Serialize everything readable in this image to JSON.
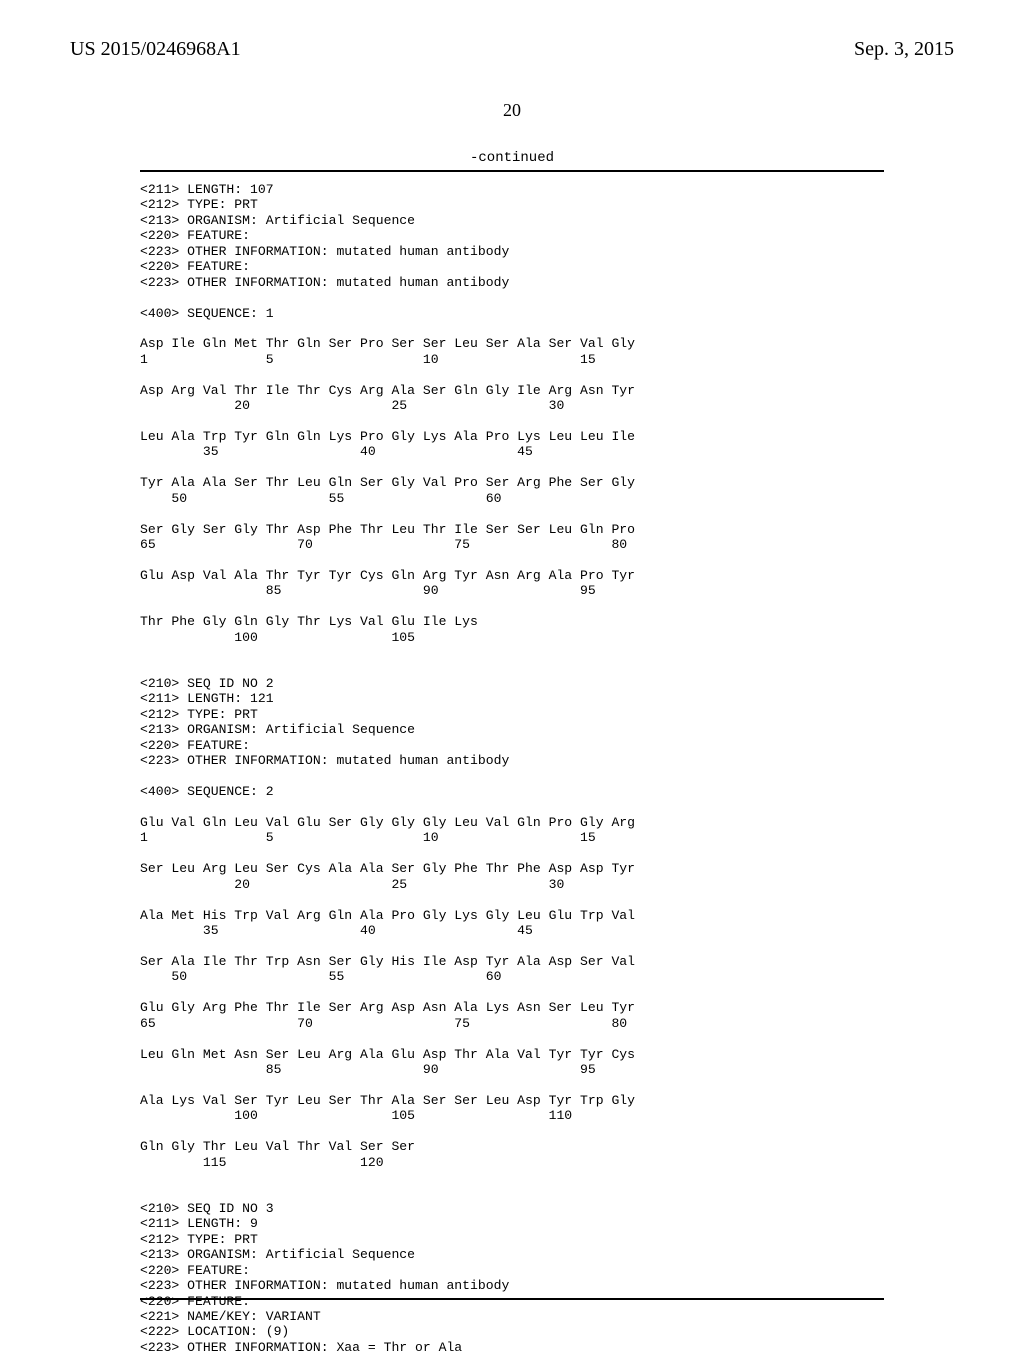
{
  "header": {
    "pub_number": "US 2015/0246968A1",
    "pub_date": "Sep. 3, 2015",
    "page_number": "20",
    "continued_label": "-continued"
  },
  "listing": "<211> LENGTH: 107\n<212> TYPE: PRT\n<213> ORGANISM: Artificial Sequence\n<220> FEATURE:\n<223> OTHER INFORMATION: mutated human antibody\n<220> FEATURE:\n<223> OTHER INFORMATION: mutated human antibody\n\n<400> SEQUENCE: 1\n\nAsp Ile Gln Met Thr Gln Ser Pro Ser Ser Leu Ser Ala Ser Val Gly\n1               5                   10                  15\n\nAsp Arg Val Thr Ile Thr Cys Arg Ala Ser Gln Gly Ile Arg Asn Tyr\n            20                  25                  30\n\nLeu Ala Trp Tyr Gln Gln Lys Pro Gly Lys Ala Pro Lys Leu Leu Ile\n        35                  40                  45\n\nTyr Ala Ala Ser Thr Leu Gln Ser Gly Val Pro Ser Arg Phe Ser Gly\n    50                  55                  60\n\nSer Gly Ser Gly Thr Asp Phe Thr Leu Thr Ile Ser Ser Leu Gln Pro\n65                  70                  75                  80\n\nGlu Asp Val Ala Thr Tyr Tyr Cys Gln Arg Tyr Asn Arg Ala Pro Tyr\n                85                  90                  95\n\nThr Phe Gly Gln Gly Thr Lys Val Glu Ile Lys\n            100                 105\n\n\n<210> SEQ ID NO 2\n<211> LENGTH: 121\n<212> TYPE: PRT\n<213> ORGANISM: Artificial Sequence\n<220> FEATURE:\n<223> OTHER INFORMATION: mutated human antibody\n\n<400> SEQUENCE: 2\n\nGlu Val Gln Leu Val Glu Ser Gly Gly Gly Leu Val Gln Pro Gly Arg\n1               5                   10                  15\n\nSer Leu Arg Leu Ser Cys Ala Ala Ser Gly Phe Thr Phe Asp Asp Tyr\n            20                  25                  30\n\nAla Met His Trp Val Arg Gln Ala Pro Gly Lys Gly Leu Glu Trp Val\n        35                  40                  45\n\nSer Ala Ile Thr Trp Asn Ser Gly His Ile Asp Tyr Ala Asp Ser Val\n    50                  55                  60\n\nGlu Gly Arg Phe Thr Ile Ser Arg Asp Asn Ala Lys Asn Ser Leu Tyr\n65                  70                  75                  80\n\nLeu Gln Met Asn Ser Leu Arg Ala Glu Asp Thr Ala Val Tyr Tyr Cys\n                85                  90                  95\n\nAla Lys Val Ser Tyr Leu Ser Thr Ala Ser Ser Leu Asp Tyr Trp Gly\n            100                 105                 110\n\nGln Gly Thr Leu Val Thr Val Ser Ser\n        115                 120\n\n\n<210> SEQ ID NO 3\n<211> LENGTH: 9\n<212> TYPE: PRT\n<213> ORGANISM: Artificial Sequence\n<220> FEATURE:\n<223> OTHER INFORMATION: mutated human antibody\n<220> FEATURE:\n<221> NAME/KEY: VARIANT\n<222> LOCATION: (9)\n<223> OTHER INFORMATION: Xaa = Thr or Ala"
}
